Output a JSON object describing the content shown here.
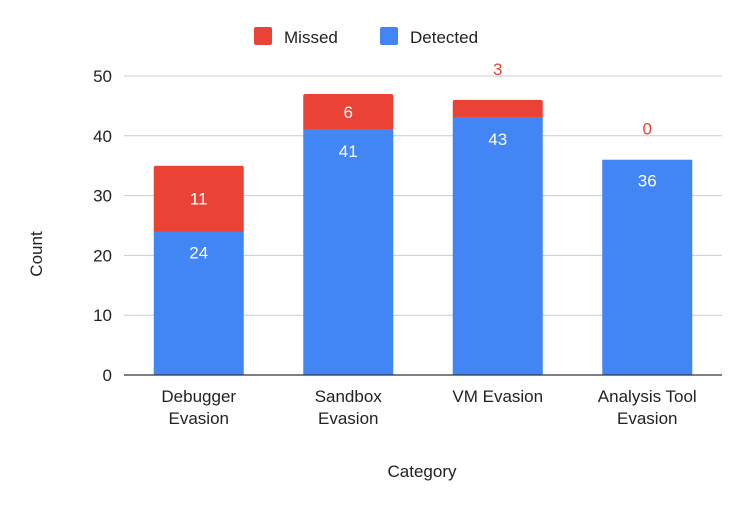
{
  "chart_data": {
    "type": "bar",
    "stacked": true,
    "title": "",
    "xlabel": "Category",
    "ylabel": "Count",
    "categories": [
      [
        "Debugger",
        "Evasion"
      ],
      [
        "Sandbox",
        "Evasion"
      ],
      [
        "VM Evasion"
      ],
      [
        "Analysis Tool",
        "Evasion"
      ]
    ],
    "series": [
      {
        "name": "Detected",
        "color": "#4285F4",
        "values": [
          24,
          41,
          43,
          36
        ],
        "labels": [
          "24",
          "41",
          "43",
          "36"
        ],
        "label_color": "#ffffff"
      },
      {
        "name": "Missed",
        "color": "#EA4335",
        "values": [
          11,
          6,
          3,
          0
        ],
        "labels": [
          "11",
          "6",
          "3",
          "0"
        ],
        "label_color": "#ffffff",
        "outside_label_color": "#EA4335"
      }
    ],
    "legend_order": [
      "Missed",
      "Detected"
    ],
    "legend_position": "top",
    "ylim": [
      0,
      50
    ],
    "yticks": [
      "0",
      "10",
      "20",
      "30",
      "40",
      "50"
    ],
    "grid": true,
    "gridline_color": "#cccccc",
    "baseline_color": "#333333"
  }
}
